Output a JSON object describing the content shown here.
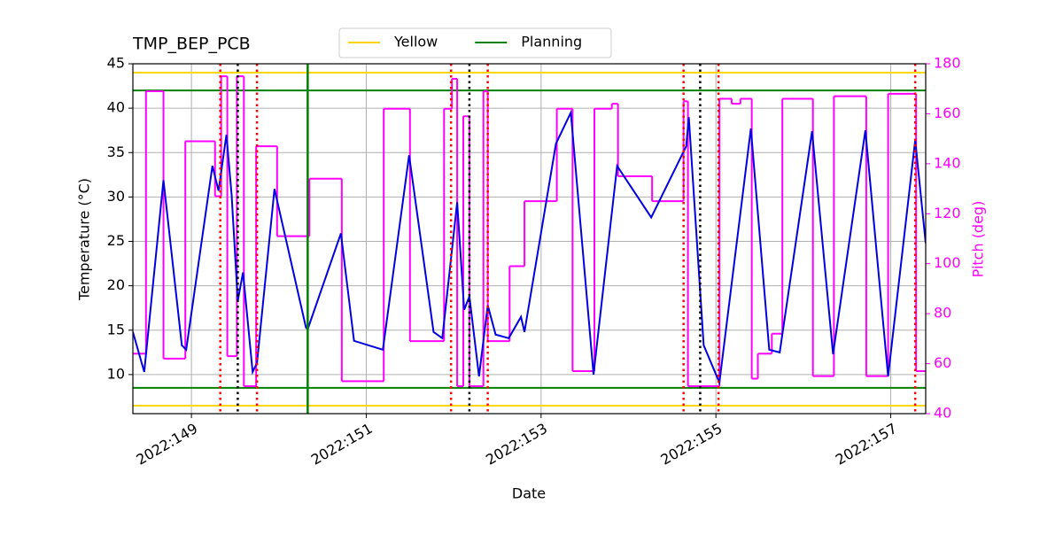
{
  "chart_data": {
    "type": "line",
    "title": "TMP_BEP_PCB",
    "xlabel": "Date",
    "ylabel": "Temperature (°C)",
    "y2label": "Pitch (deg)",
    "y2color": "#ff00ff",
    "grid": true,
    "legend": "upper center",
    "xlim": [
      148.33,
      157.4
    ],
    "xticks": [
      {
        "value": 149,
        "label": "2022:149"
      },
      {
        "value": 151,
        "label": "2022:151"
      },
      {
        "value": 153,
        "label": "2022:153"
      },
      {
        "value": 155,
        "label": "2022:155"
      },
      {
        "value": 157,
        "label": "2022:157"
      }
    ],
    "ylim": [
      5.6,
      45
    ],
    "yticks": [
      10,
      15,
      20,
      25,
      30,
      35,
      40,
      45
    ],
    "y2lim": [
      40,
      180
    ],
    "y2ticks": [
      40,
      60,
      80,
      100,
      120,
      140,
      160,
      180
    ],
    "hlines": [
      {
        "name": "Yellow",
        "color": "#ffd700",
        "values": [
          44,
          6.5
        ]
      },
      {
        "name": "Planning",
        "color": "#008000",
        "values": [
          42,
          8.5
        ]
      }
    ],
    "vlines": [
      {
        "color": "#008000",
        "style": "solid",
        "x": [
          150.33
        ]
      },
      {
        "color": "#ff0000",
        "style": "dotted",
        "x": [
          149.33,
          149.75,
          151.97,
          152.39,
          154.63,
          155.03,
          157.28
        ]
      },
      {
        "color": "#000000",
        "style": "dotted",
        "x": [
          149.53,
          152.18,
          154.82
        ]
      }
    ],
    "series": [
      {
        "color": "#0000e0",
        "x": [
          148.33,
          148.46,
          148.68,
          148.89,
          148.94,
          149.24,
          149.31,
          149.4,
          149.46,
          149.53,
          149.59,
          149.7,
          149.75,
          149.95,
          150.31,
          150.33,
          150.71,
          150.86,
          151.19,
          151.49,
          151.77,
          151.87,
          152.04,
          152.12,
          152.18,
          152.29,
          152.39,
          152.48,
          152.63,
          152.77,
          152.81,
          153.17,
          153.34,
          153.6,
          153.87,
          154.26,
          154.66,
          154.69,
          154.86,
          155.04,
          155.4,
          155.61,
          155.73,
          156.1,
          156.34,
          156.71,
          156.97,
          157.28,
          157.4
        ],
        "values": [
          14.8,
          10.3,
          31.9,
          13.3,
          12.8,
          33.5,
          30.7,
          37.0,
          30.2,
          18.3,
          21.5,
          10.3,
          11.3,
          30.9,
          15.3,
          15.1,
          25.9,
          13.8,
          12.8,
          34.7,
          14.8,
          14.1,
          29.4,
          17.3,
          18.8,
          9.8,
          17.8,
          14.5,
          14.1,
          16.5,
          14.8,
          36.0,
          39.5,
          10.0,
          33.5,
          27.7,
          35.7,
          39.0,
          13.3,
          9.1,
          37.7,
          12.8,
          12.5,
          37.4,
          12.3,
          37.5,
          9.8,
          36.4,
          24.8
        ]
      },
      {
        "color": "#ff00ff",
        "axis": "y2",
        "drawstyle": "steps-post",
        "x": [
          148.33,
          148.48,
          148.68,
          148.93,
          149.27,
          149.34,
          149.41,
          149.52,
          149.6,
          149.74,
          149.98,
          150.35,
          150.72,
          151.2,
          151.5,
          151.89,
          151.98,
          152.04,
          152.11,
          152.18,
          152.34,
          152.39,
          152.64,
          152.81,
          153.18,
          153.36,
          153.61,
          153.81,
          153.88,
          154.27,
          154.63,
          154.68,
          155.04,
          155.18,
          155.28,
          155.41,
          155.48,
          155.64,
          155.76,
          156.11,
          156.35,
          156.72,
          156.97,
          157.29,
          157.4
        ],
        "values": [
          64,
          169,
          62,
          149,
          127,
          175,
          63,
          175,
          51,
          147,
          111,
          134,
          53,
          162,
          69,
          162,
          174,
          51,
          159,
          51,
          169,
          69,
          99,
          125,
          162,
          57,
          162,
          164,
          135,
          125,
          165,
          51,
          166,
          164,
          166,
          54,
          64,
          72,
          166,
          55,
          167,
          55,
          168,
          57,
          57
        ]
      }
    ]
  }
}
